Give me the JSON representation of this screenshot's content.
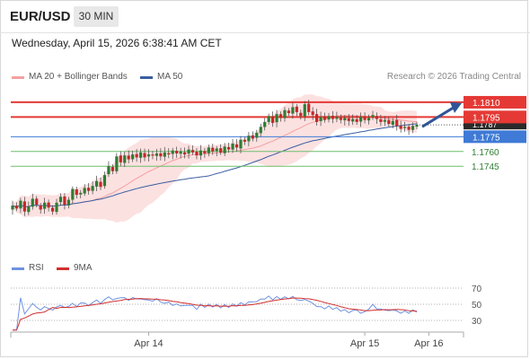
{
  "header": {
    "symbol": "EUR/USD",
    "timeframe": "30 MIN",
    "datetime": "Wednesday, April 15, 2026 6:38:41 AM CET"
  },
  "legend": {
    "ma20_label": "MA 20 + Bollinger Bands",
    "ma50_label": "MA 50",
    "copyright": "Research © 2026 Trading Central",
    "rsi_label": "RSI",
    "ma9_label": "9MA"
  },
  "colors": {
    "bull": "#2e7d32",
    "bear": "#c62828",
    "ma20": "#f4a0a0",
    "band_fill": "#fbd9d9",
    "ma50": "#3a5fa0",
    "resistance": "#e53935",
    "pivot": "#3f7ad6",
    "support": "#6cbf6c",
    "rsi": "#6f93e0",
    "rsi_ma": "#d32f2f",
    "arrow": "#2f5597"
  },
  "chart_data": {
    "type": "candlestick",
    "symbol": "EUR/USD",
    "interval": "30 MIN",
    "price_range": [
      1.1675,
      1.183
    ],
    "levels": [
      {
        "value": 1.181,
        "label": "1.1810",
        "kind": "resistance"
      },
      {
        "value": 1.1795,
        "label": "1.1795",
        "kind": "resistance"
      },
      {
        "value": 1.1787,
        "label": "1.1787",
        "kind": "last"
      },
      {
        "value": 1.1775,
        "label": "1.1775",
        "kind": "pivot"
      },
      {
        "value": 1.176,
        "label": "1.1760",
        "kind": "support"
      },
      {
        "value": 1.1745,
        "label": "1.1745",
        "kind": "support"
      }
    ],
    "x_ticks": [
      {
        "index": 34,
        "label": "Apr 14"
      },
      {
        "index": 88,
        "label": "Apr 15"
      },
      {
        "index": 104,
        "label": "Apr 16"
      }
    ],
    "candles_close": [
      1.1705,
      1.1702,
      1.171,
      1.1699,
      1.1704,
      1.1712,
      1.1706,
      1.1701,
      1.1708,
      1.1703,
      1.1699,
      1.1708,
      1.1714,
      1.1706,
      1.1711,
      1.1722,
      1.1716,
      1.1718,
      1.1723,
      1.172,
      1.1725,
      1.173,
      1.1724,
      1.1736,
      1.1745,
      1.174,
      1.1755,
      1.1749,
      1.1756,
      1.1752,
      1.1757,
      1.1754,
      1.1759,
      1.1754,
      1.1757,
      1.1756,
      1.1758,
      1.1755,
      1.1759,
      1.1757,
      1.1761,
      1.1758,
      1.176,
      1.1757,
      1.1762,
      1.1759,
      1.1756,
      1.1761,
      1.1758,
      1.1764,
      1.176,
      1.1763,
      1.1759,
      1.1765,
      1.1762,
      1.1768,
      1.1764,
      1.1772,
      1.177,
      1.1776,
      1.1773,
      1.1779,
      1.1785,
      1.179,
      1.1796,
      1.1789,
      1.1798,
      1.1794,
      1.1802,
      1.1799,
      1.1805,
      1.18,
      1.1796,
      1.1808,
      1.18,
      1.1797,
      1.179,
      1.1795,
      1.1792,
      1.1796,
      1.1793,
      1.1795,
      1.1792,
      1.1794,
      1.1791,
      1.1793,
      1.179,
      1.1795,
      1.1792,
      1.1794,
      1.1797,
      1.1793,
      1.179,
      1.1792,
      1.1788,
      1.1791,
      1.1786,
      1.1783,
      1.1785,
      1.1782,
      1.1786,
      1.1787
    ],
    "rsi": {
      "levels": [
        70,
        50,
        30
      ],
      "range": [
        20,
        80
      ]
    },
    "forecast_arrow": {
      "from": 1.1787,
      "to": 1.181
    }
  }
}
